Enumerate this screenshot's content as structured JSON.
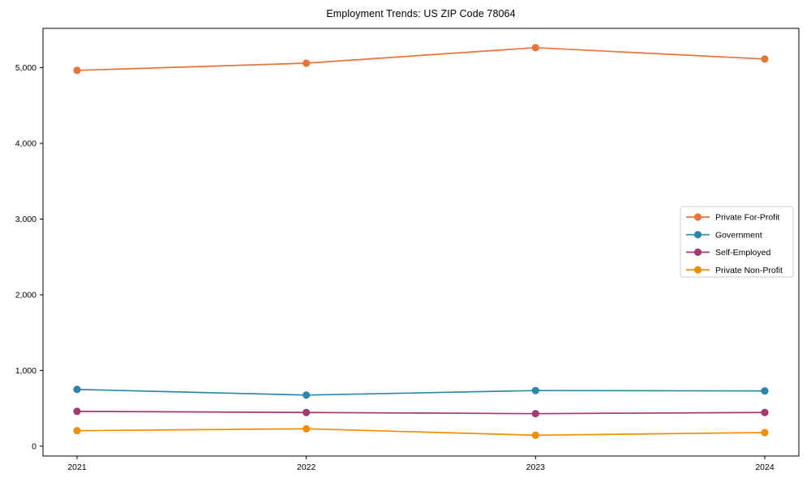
{
  "chart_data": {
    "type": "line",
    "title": "Employment Trends: US ZIP Code 78064",
    "xlabel": "",
    "ylabel": "",
    "x_categories": [
      "2021",
      "2022",
      "2023",
      "2024"
    ],
    "series": [
      {
        "name": "Private For-Profit",
        "color": "#E8743B",
        "values": [
          4965,
          5060,
          5265,
          5115
        ]
      },
      {
        "name": "Government",
        "color": "#2E86AB",
        "values": [
          750,
          675,
          735,
          730
        ]
      },
      {
        "name": "Self-Employed",
        "color": "#A23B72",
        "values": [
          460,
          445,
          430,
          445
        ]
      },
      {
        "name": "Private Non-Profit",
        "color": "#F18F01",
        "values": [
          205,
          230,
          145,
          180
        ]
      }
    ],
    "yticks": [
      0,
      1000,
      2000,
      3000,
      4000,
      5000
    ],
    "ytick_labels": [
      "0",
      "1,000",
      "2,000",
      "3,000",
      "4,000",
      "5,000"
    ],
    "ylim": [
      -130,
      5520
    ],
    "grid": false,
    "marker": "circle",
    "legend_position": "center-right",
    "axis_color": "#000000",
    "background_color": "#ffffff",
    "legend_border_color": "#cccccc"
  }
}
